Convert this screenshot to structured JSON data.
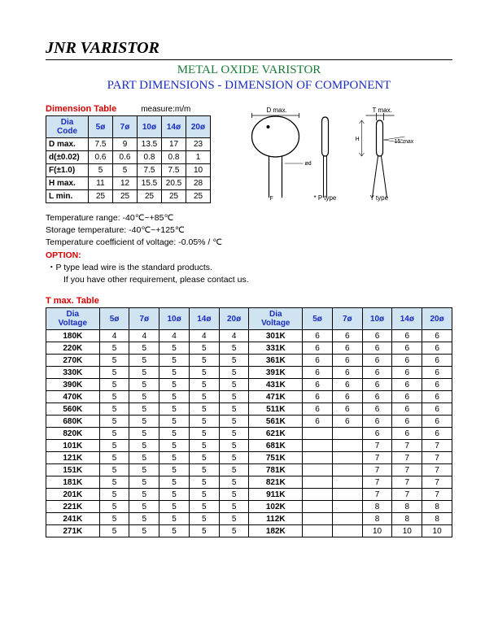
{
  "header": {
    "title": "JNR VARISTOR",
    "subtitle1": "METAL OXIDE VARISTOR",
    "subtitle2": "PART DIMENSIONS - DIMENSION OF COMPONENT"
  },
  "dimension": {
    "title": "Dimension Table",
    "measure": "measure:m/m",
    "header_top": "Dia",
    "header_bottom": "Code",
    "columns": [
      "5ø",
      "7ø",
      "10ø",
      "14ø",
      "20ø"
    ],
    "rows": [
      {
        "label": "D max.",
        "v": [
          "7.5",
          "9",
          "13.5",
          "17",
          "23"
        ]
      },
      {
        "label": "d(±0.02)",
        "v": [
          "0.6",
          "0.6",
          "0.8",
          "0.8",
          "1"
        ]
      },
      {
        "label": "F(±1.0)",
        "v": [
          "5",
          "5",
          "7.5",
          "7.5",
          "10"
        ]
      },
      {
        "label": "H max.",
        "v": [
          "11",
          "12",
          "15.5",
          "20.5",
          "28"
        ]
      },
      {
        "label": "L min.",
        "v": [
          "25",
          "25",
          "25",
          "25",
          "25"
        ]
      }
    ]
  },
  "diagram": {
    "d_max": "D max.",
    "t_max": "T max.",
    "p_type": "* P type",
    "y_type": "Y type",
    "angle": "15°max"
  },
  "notes": {
    "temp_range": "Temperature range: -40℃~+85℃",
    "storage": "Storage temperature: -40℃~+125℃",
    "coeff": "Temperature coefficient of voltage: -0.05%  / ℃",
    "option_label": "OPTION:",
    "bullet1": "P type lead wire is the standard products.",
    "bullet2": "If you have other requirement, please contact us."
  },
  "tmax": {
    "title": "T max. Table",
    "header_top": "Dia",
    "header_bottom": "Voltage",
    "columns": [
      "5ø",
      "7ø",
      "10ø",
      "14ø",
      "20ø"
    ],
    "rows_left": [
      {
        "label": "180K",
        "v": [
          "4",
          "4",
          "4",
          "4",
          "4"
        ]
      },
      {
        "label": "220K",
        "v": [
          "5",
          "5",
          "5",
          "5",
          "5"
        ]
      },
      {
        "label": "270K",
        "v": [
          "5",
          "5",
          "5",
          "5",
          "5"
        ]
      },
      {
        "label": "330K",
        "v": [
          "5",
          "5",
          "5",
          "5",
          "5"
        ]
      },
      {
        "label": "390K",
        "v": [
          "5",
          "5",
          "5",
          "5",
          "5"
        ]
      },
      {
        "label": "470K",
        "v": [
          "5",
          "5",
          "5",
          "5",
          "5"
        ]
      },
      {
        "label": "560K",
        "v": [
          "5",
          "5",
          "5",
          "5",
          "5"
        ]
      },
      {
        "label": "680K",
        "v": [
          "5",
          "5",
          "5",
          "5",
          "5"
        ]
      },
      {
        "label": "820K",
        "v": [
          "5",
          "5",
          "5",
          "5",
          "5"
        ]
      },
      {
        "label": "101K",
        "v": [
          "5",
          "5",
          "5",
          "5",
          "5"
        ]
      },
      {
        "label": "121K",
        "v": [
          "5",
          "5",
          "5",
          "5",
          "5"
        ]
      },
      {
        "label": "151K",
        "v": [
          "5",
          "5",
          "5",
          "5",
          "5"
        ]
      },
      {
        "label": "181K",
        "v": [
          "5",
          "5",
          "5",
          "5",
          "5"
        ]
      },
      {
        "label": "201K",
        "v": [
          "5",
          "5",
          "5",
          "5",
          "5"
        ]
      },
      {
        "label": "221K",
        "v": [
          "5",
          "5",
          "5",
          "5",
          "5"
        ]
      },
      {
        "label": "241K",
        "v": [
          "5",
          "5",
          "5",
          "5",
          "5"
        ]
      },
      {
        "label": "271K",
        "v": [
          "5",
          "5",
          "5",
          "5",
          "5"
        ]
      }
    ],
    "rows_right": [
      {
        "label": "301K",
        "v": [
          "6",
          "6",
          "6",
          "6",
          "6"
        ]
      },
      {
        "label": "331K",
        "v": [
          "6",
          "6",
          "6",
          "6",
          "6"
        ]
      },
      {
        "label": "361K",
        "v": [
          "6",
          "6",
          "6",
          "6",
          "6"
        ]
      },
      {
        "label": "391K",
        "v": [
          "6",
          "6",
          "6",
          "6",
          "6"
        ]
      },
      {
        "label": "431K",
        "v": [
          "6",
          "6",
          "6",
          "6",
          "6"
        ]
      },
      {
        "label": "471K",
        "v": [
          "6",
          "6",
          "6",
          "6",
          "6"
        ]
      },
      {
        "label": "511K",
        "v": [
          "6",
          "6",
          "6",
          "6",
          "6"
        ]
      },
      {
        "label": "561K",
        "v": [
          "6",
          "6",
          "6",
          "6",
          "6"
        ]
      },
      {
        "label": "621K",
        "v": [
          "",
          "",
          "6",
          "6",
          "6"
        ]
      },
      {
        "label": "681K",
        "v": [
          "",
          "",
          "7",
          "7",
          "7"
        ]
      },
      {
        "label": "751K",
        "v": [
          "",
          "",
          "7",
          "7",
          "7"
        ]
      },
      {
        "label": "781K",
        "v": [
          "",
          "",
          "7",
          "7",
          "7"
        ]
      },
      {
        "label": "821K",
        "v": [
          "",
          "",
          "7",
          "7",
          "7"
        ]
      },
      {
        "label": "911K",
        "v": [
          "",
          "",
          "7",
          "7",
          "7"
        ]
      },
      {
        "label": "102K",
        "v": [
          "",
          "",
          "8",
          "8",
          "8"
        ]
      },
      {
        "label": "112K",
        "v": [
          "",
          "",
          "8",
          "8",
          "8"
        ]
      },
      {
        "label": "182K",
        "v": [
          "",
          "",
          "10",
          "10",
          "10"
        ]
      }
    ]
  }
}
